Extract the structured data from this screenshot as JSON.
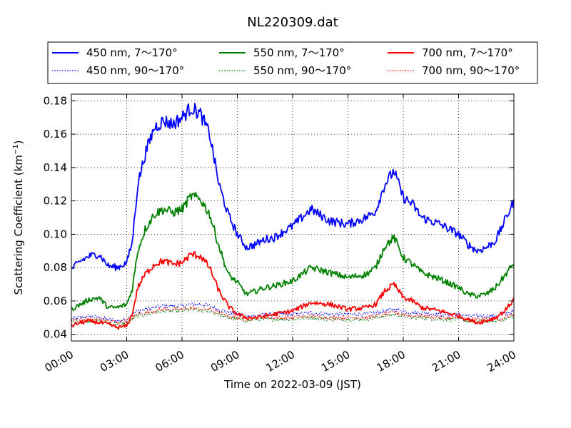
{
  "chart_data": {
    "type": "line",
    "title": "NL220309.dat",
    "xlabel": "Time on 2022-03-09 (JST)",
    "ylabel_main": "Scattering Coefficient (km",
    "ylabel_sup": "−1",
    "ylabel_close": ")",
    "x_ticks": [
      "00:00",
      "03:00",
      "06:00",
      "09:00",
      "12:00",
      "15:00",
      "18:00",
      "21:00",
      "24:00"
    ],
    "xlim": [
      0,
      24
    ],
    "ylim": [
      0.036,
      0.184
    ],
    "y_ticks": [
      0.04,
      0.06,
      0.08,
      0.1,
      0.12,
      0.14,
      0.16,
      0.18
    ],
    "y_tick_labels": [
      "0.04",
      "0.06",
      "0.08",
      "0.10",
      "0.12",
      "0.14",
      "0.16",
      "0.18"
    ],
    "grid": true,
    "legend_position": "top",
    "x_hours": [
      0,
      0.5,
      1,
      1.5,
      2,
      2.5,
      3,
      3.3,
      3.6,
      4,
      4.5,
      5,
      5.5,
      6,
      6.5,
      7,
      7.5,
      8,
      8.5,
      9,
      9.5,
      10,
      10.5,
      11,
      12,
      13,
      14,
      15,
      16,
      16.5,
      17,
      17.5,
      18,
      18.5,
      19,
      20,
      21,
      21.5,
      22,
      22.5,
      23,
      23.5,
      24
    ],
    "series": [
      {
        "name": "450 nm, 7～170°",
        "color": "#0000ff",
        "dash": "solid",
        "values": [
          0.079,
          0.084,
          0.087,
          0.088,
          0.081,
          0.08,
          0.083,
          0.095,
          0.13,
          0.148,
          0.164,
          0.168,
          0.166,
          0.17,
          0.176,
          0.172,
          0.16,
          0.13,
          0.112,
          0.1,
          0.092,
          0.094,
          0.097,
          0.098,
          0.105,
          0.115,
          0.108,
          0.106,
          0.11,
          0.114,
          0.13,
          0.138,
          0.122,
          0.118,
          0.11,
          0.106,
          0.1,
          0.094,
          0.09,
          0.092,
          0.096,
          0.108,
          0.12
        ]
      },
      {
        "name": "550 nm, 7～170°",
        "color": "#008000",
        "dash": "solid",
        "values": [
          0.055,
          0.058,
          0.061,
          0.062,
          0.056,
          0.056,
          0.058,
          0.067,
          0.09,
          0.103,
          0.112,
          0.115,
          0.113,
          0.115,
          0.123,
          0.121,
          0.112,
          0.093,
          0.076,
          0.071,
          0.064,
          0.066,
          0.068,
          0.069,
          0.072,
          0.08,
          0.077,
          0.074,
          0.076,
          0.08,
          0.093,
          0.098,
          0.086,
          0.082,
          0.077,
          0.073,
          0.068,
          0.064,
          0.063,
          0.064,
          0.068,
          0.075,
          0.083
        ]
      },
      {
        "name": "700 nm, 7～170°",
        "color": "#ff0000",
        "dash": "solid",
        "values": [
          0.045,
          0.047,
          0.048,
          0.047,
          0.046,
          0.044,
          0.045,
          0.052,
          0.068,
          0.076,
          0.082,
          0.084,
          0.082,
          0.083,
          0.088,
          0.087,
          0.08,
          0.066,
          0.057,
          0.052,
          0.05,
          0.05,
          0.051,
          0.052,
          0.054,
          0.059,
          0.058,
          0.055,
          0.056,
          0.058,
          0.066,
          0.07,
          0.062,
          0.06,
          0.056,
          0.054,
          0.051,
          0.049,
          0.047,
          0.048,
          0.05,
          0.054,
          0.061
        ]
      },
      {
        "name": "450 nm, 90～170°",
        "color": "#0000ff",
        "dash": "dotted",
        "values": [
          0.049,
          0.05,
          0.051,
          0.05,
          0.049,
          0.048,
          0.049,
          0.052,
          0.054,
          0.055,
          0.056,
          0.057,
          0.057,
          0.057,
          0.058,
          0.058,
          0.057,
          0.055,
          0.053,
          0.052,
          0.051,
          0.051,
          0.052,
          0.052,
          0.052,
          0.053,
          0.052,
          0.052,
          0.052,
          0.053,
          0.054,
          0.055,
          0.054,
          0.053,
          0.053,
          0.052,
          0.052,
          0.051,
          0.051,
          0.051,
          0.051,
          0.052,
          0.054
        ]
      },
      {
        "name": "550 nm, 90～170°",
        "color": "#008000",
        "dash": "dotted",
        "values": [
          0.047,
          0.048,
          0.048,
          0.048,
          0.047,
          0.046,
          0.047,
          0.049,
          0.051,
          0.052,
          0.053,
          0.054,
          0.054,
          0.054,
          0.055,
          0.054,
          0.054,
          0.052,
          0.05,
          0.049,
          0.048,
          0.049,
          0.049,
          0.049,
          0.049,
          0.05,
          0.049,
          0.049,
          0.049,
          0.05,
          0.051,
          0.052,
          0.051,
          0.05,
          0.05,
          0.049,
          0.049,
          0.048,
          0.048,
          0.048,
          0.048,
          0.049,
          0.051
        ]
      },
      {
        "name": "700 nm, 90～170°",
        "color": "#ff0000",
        "dash": "dotted",
        "values": [
          0.048,
          0.049,
          0.049,
          0.049,
          0.048,
          0.047,
          0.048,
          0.05,
          0.052,
          0.053,
          0.054,
          0.055,
          0.055,
          0.055,
          0.056,
          0.055,
          0.055,
          0.053,
          0.051,
          0.05,
          0.049,
          0.05,
          0.05,
          0.05,
          0.05,
          0.051,
          0.05,
          0.05,
          0.05,
          0.051,
          0.052,
          0.053,
          0.052,
          0.051,
          0.051,
          0.05,
          0.05,
          0.049,
          0.049,
          0.049,
          0.049,
          0.05,
          0.052
        ]
      }
    ],
    "legend_order": [
      0,
      1,
      2,
      3,
      4,
      5
    ]
  }
}
